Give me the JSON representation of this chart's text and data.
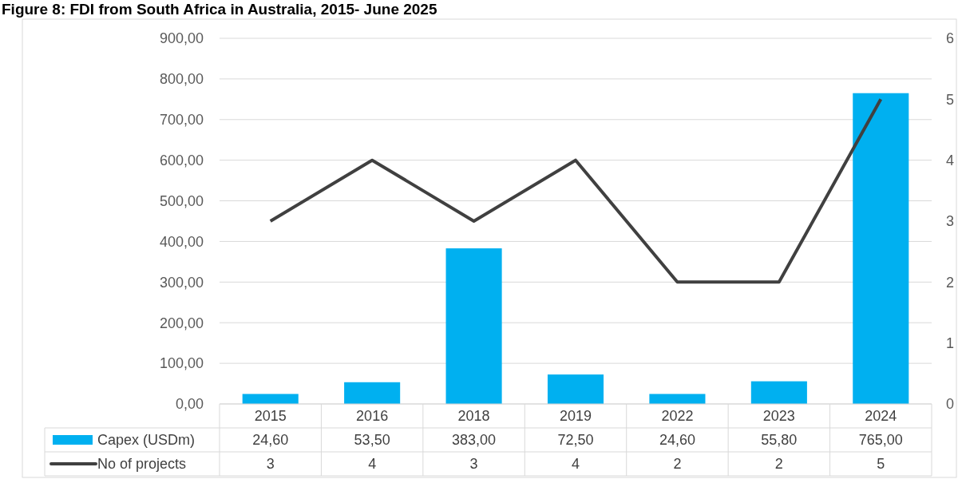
{
  "chart_data": {
    "type": "bar",
    "title": "Figure 8: FDI from South Africa in Australia, 2015- June 2025",
    "categories": [
      "2015",
      "2016",
      "2018",
      "2019",
      "2022",
      "2023",
      "2024"
    ],
    "series": [
      {
        "name": "Capex (USDm)",
        "color": "#00b0f0",
        "values": [
          24.6,
          53.5,
          383,
          72.5,
          24.6,
          55.8,
          765
        ],
        "value_labels": [
          "24,60",
          "53,50",
          "383,00",
          "72,50",
          "24,60",
          "55,80",
          "765,00"
        ]
      },
      {
        "name": "No of projects",
        "type": "line",
        "axis": "y2",
        "color": "#404040",
        "values": [
          3,
          4,
          3,
          4,
          2,
          2,
          5
        ],
        "value_labels": [
          "3",
          "4",
          "3",
          "4",
          "2",
          "2",
          "5"
        ]
      }
    ],
    "ylim": [
      0,
      900
    ],
    "yticks": [
      {
        "value": 0,
        "label": "0,00"
      },
      {
        "value": 100,
        "label": "100,00"
      },
      {
        "value": 200,
        "label": "200,00"
      },
      {
        "value": 300,
        "label": "300,00"
      },
      {
        "value": 400,
        "label": "400,00"
      },
      {
        "value": 500,
        "label": "500,00"
      },
      {
        "value": 600,
        "label": "600,00"
      },
      {
        "value": 700,
        "label": "700,00"
      },
      {
        "value": 800,
        "label": "800,00"
      },
      {
        "value": 900,
        "label": "900,00"
      }
    ],
    "y2lim": [
      0,
      6
    ],
    "y2ticks": [
      0,
      1,
      2,
      3,
      4,
      5,
      6
    ],
    "grid": "y",
    "legend": "bottom",
    "marker": "none",
    "line_style": "solid"
  }
}
